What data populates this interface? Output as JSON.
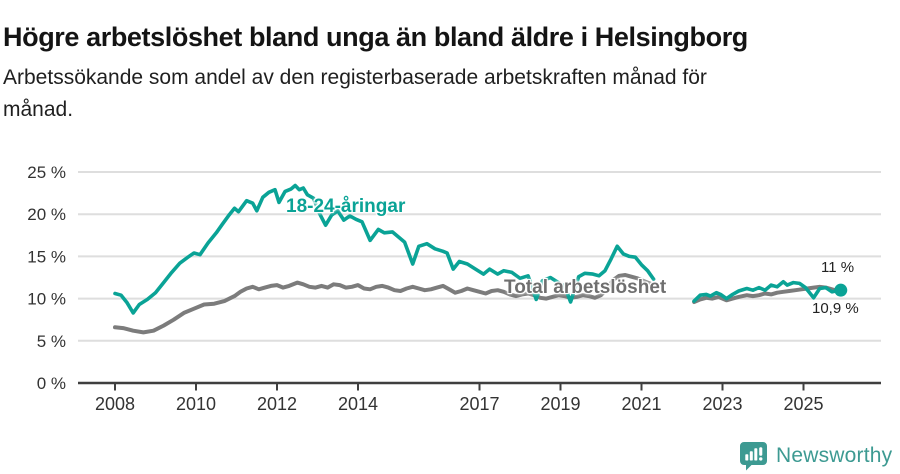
{
  "header": {
    "title": "Högre arbetslöshet bland unga än bland äldre i Helsingborg",
    "subtitle_line1": "Arbetssökande som andel av den registerbaserade arbetskraften månad för",
    "subtitle_line2": "månad."
  },
  "chart_data": {
    "type": "line",
    "title": "Högre arbetslöshet bland unga än bland äldre i Helsingborg",
    "xlabel": "",
    "ylabel": "Arbetssökande som andel av den registerbaserade arbetskraften",
    "unit": "%",
    "xlim": [
      2007.6,
      2026.4
    ],
    "ylim": [
      0,
      26.5
    ],
    "grid": "horizontal",
    "legend_position": "inline-annotations",
    "x_ticks": [
      2008,
      2010,
      2012,
      2014,
      2017,
      2019,
      2021,
      2023,
      2025
    ],
    "x_tick_labels": [
      "2008",
      "2010",
      "2012",
      "2014",
      "2017",
      "2019",
      "2021",
      "2023",
      "2025"
    ],
    "y_ticks": [
      0,
      5,
      10,
      15,
      20,
      25
    ],
    "y_tick_labels": [
      "0 %",
      "5 %",
      "10 %",
      "15 %",
      "20 %",
      "25 %"
    ],
    "colors": {
      "young": "#0aa396",
      "total": "#7c7c7c",
      "grid": "#dedede",
      "axis": "#3f3f3f",
      "text": "#333333"
    },
    "series": [
      {
        "name": "18-24-åringar",
        "color": "#0aa396",
        "end_label": "11 %",
        "end_value": 11.0,
        "end_dot": true,
        "segments": [
          [
            [
              2008.0,
              10.6
            ],
            [
              2008.15,
              10.4
            ],
            [
              2008.3,
              9.5
            ],
            [
              2008.45,
              8.3
            ],
            [
              2008.6,
              9.3
            ],
            [
              2008.8,
              9.9
            ],
            [
              2009.0,
              10.7
            ],
            [
              2009.2,
              11.9
            ],
            [
              2009.4,
              13.1
            ],
            [
              2009.6,
              14.2
            ],
            [
              2009.8,
              14.9
            ],
            [
              2009.95,
              15.4
            ],
            [
              2010.1,
              15.2
            ],
            [
              2010.3,
              16.6
            ],
            [
              2010.5,
              17.8
            ],
            [
              2010.65,
              18.8
            ],
            [
              2010.8,
              19.8
            ],
            [
              2010.95,
              20.7
            ],
            [
              2011.05,
              20.3
            ],
            [
              2011.25,
              21.6
            ],
            [
              2011.4,
              21.3
            ],
            [
              2011.5,
              20.4
            ],
            [
              2011.65,
              22.0
            ],
            [
              2011.8,
              22.6
            ],
            [
              2011.95,
              22.9
            ],
            [
              2012.05,
              21.4
            ],
            [
              2012.2,
              22.7
            ],
            [
              2012.35,
              23.0
            ],
            [
              2012.45,
              23.4
            ],
            [
              2012.55,
              22.9
            ],
            [
              2012.65,
              23.1
            ],
            [
              2012.75,
              22.3
            ],
            [
              2012.9,
              21.9
            ],
            [
              2013.05,
              20.1
            ],
            [
              2013.2,
              18.7
            ],
            [
              2013.35,
              19.9
            ],
            [
              2013.5,
              20.4
            ],
            [
              2013.65,
              19.3
            ],
            [
              2013.8,
              19.8
            ],
            [
              2013.95,
              19.4
            ],
            [
              2014.1,
              19.1
            ],
            [
              2014.3,
              16.9
            ],
            [
              2014.5,
              18.2
            ],
            [
              2014.65,
              17.8
            ],
            [
              2014.85,
              17.9
            ],
            [
              2015.0,
              17.3
            ],
            [
              2015.15,
              16.7
            ],
            [
              2015.35,
              14.1
            ],
            [
              2015.5,
              16.2
            ],
            [
              2015.7,
              16.5
            ],
            [
              2015.9,
              15.9
            ],
            [
              2016.1,
              15.6
            ],
            [
              2016.2,
              15.4
            ],
            [
              2016.35,
              13.5
            ],
            [
              2016.5,
              14.4
            ],
            [
              2016.7,
              14.1
            ],
            [
              2016.9,
              13.5
            ],
            [
              2017.1,
              12.9
            ],
            [
              2017.25,
              13.5
            ],
            [
              2017.45,
              12.9
            ],
            [
              2017.6,
              13.3
            ],
            [
              2017.8,
              13.1
            ],
            [
              2018.0,
              12.4
            ],
            [
              2018.2,
              12.7
            ],
            [
              2018.4,
              9.9
            ],
            [
              2018.55,
              12.1
            ],
            [
              2018.75,
              12.5
            ],
            [
              2018.95,
              11.9
            ],
            [
              2019.1,
              11.5
            ],
            [
              2019.25,
              9.6
            ],
            [
              2019.45,
              12.6
            ],
            [
              2019.6,
              13.0
            ],
            [
              2019.8,
              12.9
            ],
            [
              2019.95,
              12.7
            ],
            [
              2020.1,
              13.3
            ],
            [
              2020.25,
              14.7
            ],
            [
              2020.4,
              16.2
            ],
            [
              2020.55,
              15.3
            ],
            [
              2020.7,
              15.0
            ],
            [
              2020.85,
              14.9
            ],
            [
              2021.0,
              14.0
            ],
            [
              2021.15,
              13.3
            ],
            [
              2021.3,
              12.3
            ]
          ],
          [
            [
              2022.3,
              9.7
            ],
            [
              2022.45,
              10.4
            ],
            [
              2022.6,
              10.5
            ],
            [
              2022.7,
              10.3
            ],
            [
              2022.85,
              10.7
            ],
            [
              2022.95,
              10.5
            ],
            [
              2023.1,
              10.0
            ],
            [
              2023.25,
              10.5
            ],
            [
              2023.4,
              10.9
            ],
            [
              2023.6,
              11.2
            ],
            [
              2023.75,
              11.0
            ],
            [
              2023.9,
              11.3
            ],
            [
              2024.05,
              11.0
            ],
            [
              2024.2,
              11.6
            ],
            [
              2024.35,
              11.4
            ],
            [
              2024.5,
              12.0
            ],
            [
              2024.6,
              11.6
            ],
            [
              2024.75,
              11.9
            ],
            [
              2024.9,
              11.8
            ],
            [
              2025.05,
              11.3
            ],
            [
              2025.25,
              10.1
            ],
            [
              2025.4,
              11.2
            ],
            [
              2025.55,
              11.3
            ],
            [
              2025.7,
              10.8
            ],
            [
              2025.8,
              10.9
            ],
            [
              2025.92,
              11.0
            ]
          ]
        ]
      },
      {
        "name": "Total arbetslöshet",
        "color": "#7c7c7c",
        "end_label": "10,9 %",
        "end_value": 10.9,
        "end_dot": false,
        "segments": [
          [
            [
              2008.0,
              6.6
            ],
            [
              2008.2,
              6.5
            ],
            [
              2008.45,
              6.2
            ],
            [
              2008.7,
              6.0
            ],
            [
              2008.95,
              6.2
            ],
            [
              2009.2,
              6.8
            ],
            [
              2009.45,
              7.5
            ],
            [
              2009.7,
              8.3
            ],
            [
              2009.95,
              8.8
            ],
            [
              2010.2,
              9.3
            ],
            [
              2010.45,
              9.4
            ],
            [
              2010.7,
              9.7
            ],
            [
              2010.95,
              10.3
            ],
            [
              2011.1,
              10.8
            ],
            [
              2011.25,
              11.2
            ],
            [
              2011.4,
              11.4
            ],
            [
              2011.55,
              11.1
            ],
            [
              2011.7,
              11.3
            ],
            [
              2011.85,
              11.5
            ],
            [
              2012.0,
              11.6
            ],
            [
              2012.15,
              11.3
            ],
            [
              2012.3,
              11.5
            ],
            [
              2012.5,
              11.9
            ],
            [
              2012.65,
              11.7
            ],
            [
              2012.8,
              11.4
            ],
            [
              2012.95,
              11.3
            ],
            [
              2013.1,
              11.5
            ],
            [
              2013.25,
              11.3
            ],
            [
              2013.4,
              11.7
            ],
            [
              2013.55,
              11.6
            ],
            [
              2013.7,
              11.3
            ],
            [
              2013.85,
              11.4
            ],
            [
              2014.0,
              11.6
            ],
            [
              2014.15,
              11.2
            ],
            [
              2014.3,
              11.1
            ],
            [
              2014.45,
              11.4
            ],
            [
              2014.6,
              11.5
            ],
            [
              2014.75,
              11.3
            ],
            [
              2014.9,
              11.0
            ],
            [
              2015.05,
              10.9
            ],
            [
              2015.2,
              11.2
            ],
            [
              2015.35,
              11.4
            ],
            [
              2015.5,
              11.2
            ],
            [
              2015.65,
              11.0
            ],
            [
              2015.8,
              11.1
            ],
            [
              2015.95,
              11.3
            ],
            [
              2016.1,
              11.5
            ],
            [
              2016.25,
              11.1
            ],
            [
              2016.4,
              10.7
            ],
            [
              2016.55,
              10.9
            ],
            [
              2016.7,
              11.2
            ],
            [
              2016.85,
              11.0
            ],
            [
              2017.0,
              10.8
            ],
            [
              2017.15,
              10.6
            ],
            [
              2017.3,
              10.9
            ],
            [
              2017.45,
              11.0
            ],
            [
              2017.6,
              10.8
            ],
            [
              2017.75,
              10.5
            ],
            [
              2017.9,
              10.3
            ],
            [
              2018.05,
              10.5
            ],
            [
              2018.2,
              10.6
            ],
            [
              2018.35,
              10.4
            ],
            [
              2018.5,
              10.1
            ],
            [
              2018.65,
              10.0
            ],
            [
              2018.8,
              10.2
            ],
            [
              2018.95,
              10.4
            ],
            [
              2019.1,
              10.3
            ],
            [
              2019.25,
              10.1
            ],
            [
              2019.4,
              10.2
            ],
            [
              2019.55,
              10.4
            ],
            [
              2019.7,
              10.3
            ],
            [
              2019.85,
              10.1
            ],
            [
              2020.0,
              10.4
            ],
            [
              2020.15,
              11.2
            ],
            [
              2020.3,
              12.2
            ],
            [
              2020.45,
              12.7
            ],
            [
              2020.6,
              12.8
            ],
            [
              2020.75,
              12.6
            ],
            [
              2020.9,
              12.4
            ],
            [
              2021.05,
              12.1
            ],
            [
              2021.2,
              11.8
            ],
            [
              2021.3,
              11.6
            ]
          ],
          [
            [
              2022.3,
              9.6
            ],
            [
              2022.45,
              9.9
            ],
            [
              2022.6,
              10.1
            ],
            [
              2022.75,
              10.0
            ],
            [
              2022.9,
              10.2
            ],
            [
              2023.1,
              9.8
            ],
            [
              2023.25,
              10.0
            ],
            [
              2023.4,
              10.2
            ],
            [
              2023.6,
              10.4
            ],
            [
              2023.75,
              10.3
            ],
            [
              2023.9,
              10.4
            ],
            [
              2024.05,
              10.6
            ],
            [
              2024.2,
              10.5
            ],
            [
              2024.35,
              10.7
            ],
            [
              2024.5,
              10.8
            ],
            [
              2024.65,
              10.9
            ],
            [
              2024.8,
              11.0
            ],
            [
              2024.95,
              11.1
            ],
            [
              2025.1,
              11.2
            ],
            [
              2025.25,
              11.3
            ],
            [
              2025.4,
              11.4
            ],
            [
              2025.55,
              11.3
            ],
            [
              2025.7,
              11.1
            ],
            [
              2025.85,
              10.9
            ]
          ]
        ]
      }
    ]
  },
  "footer": {
    "brand": "Newsworthy",
    "logo_icon": "bar-chart-speech-bubble-icon",
    "brand_color": "#3d9a92"
  }
}
